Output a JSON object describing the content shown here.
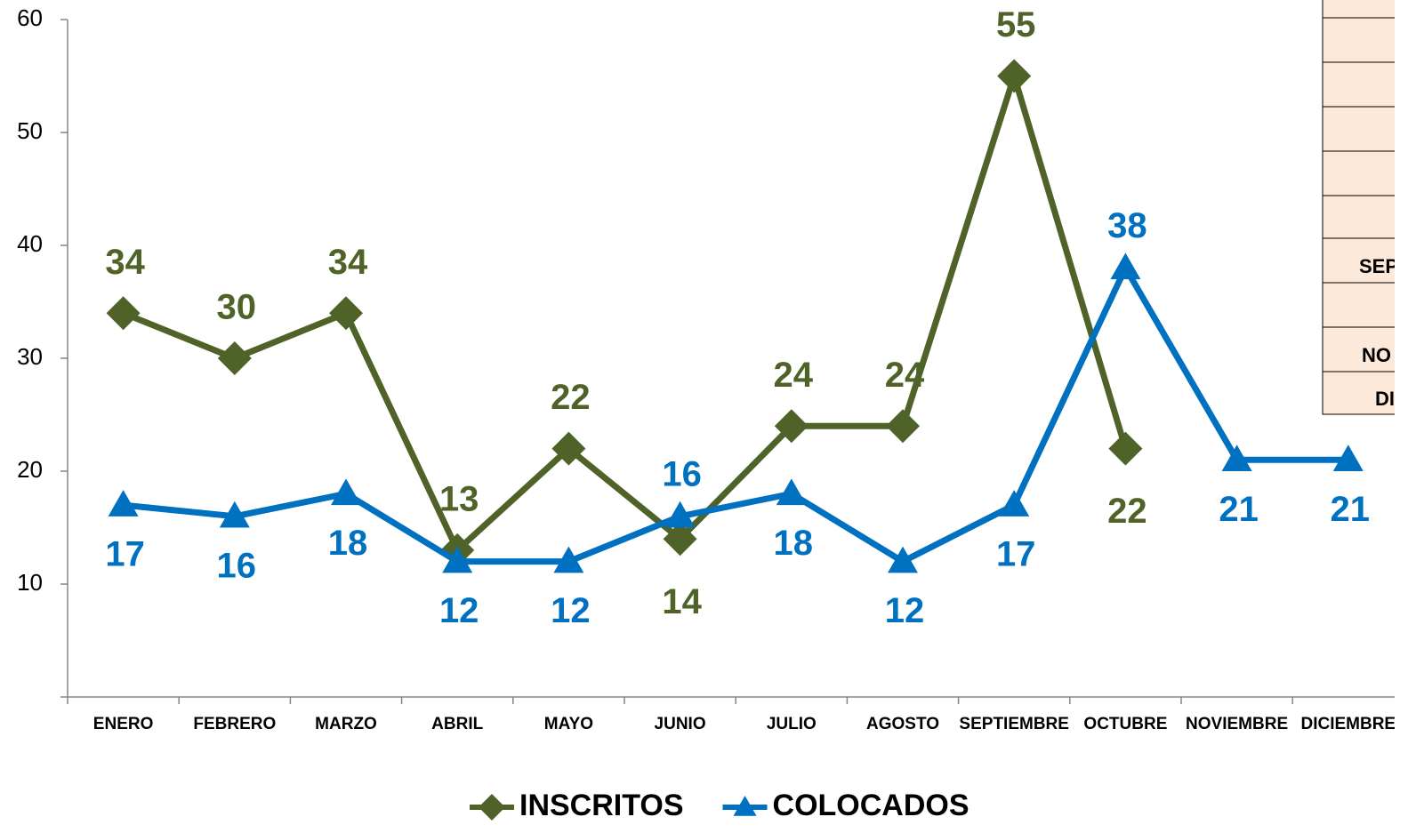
{
  "chart_data": {
    "type": "line",
    "categories": [
      "ENERO",
      "FEBRERO",
      "MARZO",
      "ABRIL",
      "MAYO",
      "JUNIO",
      "JULIO",
      "AGOSTO",
      "SEPTIEMBRE",
      "OCTUBRE",
      "NOVIEMBRE",
      "DICIEMBRE"
    ],
    "series": [
      {
        "name": "INSCRITOS",
        "color": "#4f6228",
        "marker": "diamond",
        "values": [
          34,
          30,
          34,
          13,
          22,
          14,
          24,
          24,
          55,
          22,
          null,
          null
        ]
      },
      {
        "name": "COLOCADOS",
        "color": "#0070c0",
        "marker": "triangle",
        "values": [
          17,
          16,
          18,
          12,
          12,
          16,
          18,
          12,
          17,
          38,
          21,
          21
        ]
      }
    ],
    "ylim": [
      0,
      60
    ],
    "yticks": [
      10,
      20,
      30,
      40,
      50,
      60
    ],
    "grid": false,
    "legend": "bottom"
  },
  "side_table": {
    "rows": [
      "SEP",
      "NO",
      "DI"
    ]
  }
}
